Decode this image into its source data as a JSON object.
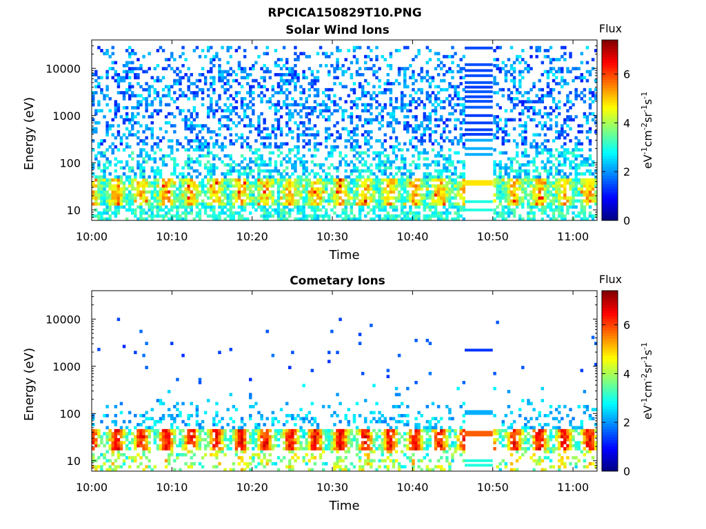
{
  "figure": {
    "title": "RPCICA150829T10.PNG"
  },
  "colormap": [
    "#00007f",
    "#0000ff",
    "#007fff",
    "#00ffff",
    "#7fff7f",
    "#ffff00",
    "#ff7f00",
    "#ff0000",
    "#7f0000"
  ],
  "chart_data": [
    {
      "type": "heatmap",
      "title": "Solar Wind Ions",
      "xlabel": "Time",
      "ylabel": "Energy (eV)",
      "y_scale": "log",
      "ylim": [
        6,
        40000
      ],
      "y_ticks": [
        10,
        100,
        1000,
        10000
      ],
      "y_tick_labels": [
        "10",
        "100",
        "1000",
        "10000"
      ],
      "x_ticks": [
        "10:00",
        "10:10",
        "10:20",
        "10:30",
        "10:40",
        "10:50",
        "11:00"
      ],
      "x_range_minutes": [
        0,
        63
      ],
      "colorbar": {
        "label_top": "Flux",
        "label": "eV-1cm-2sr-1s-1",
        "range": [
          0,
          7.4
        ],
        "ticks": [
          0,
          2,
          4,
          6
        ]
      },
      "features": {
        "background_flux": "sparse blue (1-3) across 30 eV to 30000 eV",
        "low_energy_peak": "green-yellow-orange (4-6) bands near 20-40 eV, occasional red (~6.8)",
        "gap_interval_minutes": [
          46.5,
          50
        ],
        "gap_bands_eV": [
          27000,
          12000,
          9000,
          7000,
          5000,
          4000,
          3200,
          2500,
          2000,
          1500,
          1000,
          700,
          500,
          400,
          300,
          200,
          150,
          40,
          35,
          15,
          10
        ]
      }
    },
    {
      "type": "heatmap",
      "title": "Cometary Ions",
      "xlabel": "Time",
      "ylabel": "Energy (eV)",
      "y_scale": "log",
      "ylim": [
        6,
        40000
      ],
      "y_ticks": [
        10,
        100,
        1000,
        10000
      ],
      "y_tick_labels": [
        "10",
        "100",
        "1000",
        "10000"
      ],
      "x_ticks": [
        "10:00",
        "10:10",
        "10:20",
        "10:30",
        "10:40",
        "10:50",
        "11:00"
      ],
      "x_range_minutes": [
        0,
        63
      ],
      "colorbar": {
        "label_top": "Flux",
        "label": "eV-1cm-2sr-1s-1",
        "range": [
          0,
          7.4
        ],
        "ticks": [
          0,
          2,
          4,
          6
        ]
      },
      "features": {
        "background_flux": "isolated blue points from 500 eV to 10000 eV",
        "low_energy_peak": "orange-red (5-7) pulses at 20-40 eV repeating every ~3 minutes",
        "gap_interval_minutes": [
          46.5,
          50
        ],
        "gap_bands_eV": [
          2200,
          110,
          100,
          40,
          35,
          10,
          8
        ]
      }
    }
  ]
}
